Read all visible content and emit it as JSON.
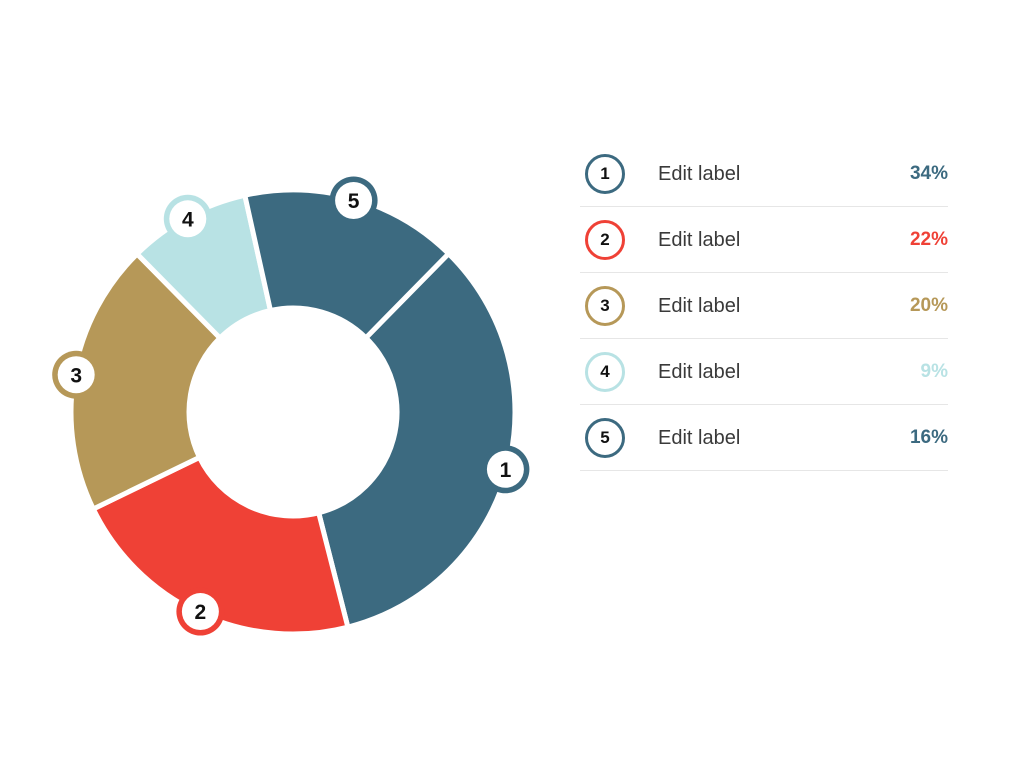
{
  "chart_data": {
    "type": "pie",
    "donut": true,
    "categories": [
      "1",
      "2",
      "3",
      "4",
      "5"
    ],
    "values": [
      34,
      22,
      20,
      9,
      16
    ],
    "value_labels": [
      "34%",
      "22%",
      "20%",
      "9%",
      "16%"
    ],
    "colors": [
      "#3c6a80",
      "#ef4136",
      "#b69858",
      "#b8e2e4",
      "#3c6a80"
    ],
    "title": "",
    "legend": {
      "placement": "right",
      "entries": [
        {
          "badge": "1",
          "label": "Edit label",
          "value": "34%",
          "color": "#3c6a80"
        },
        {
          "badge": "2",
          "label": "Edit label",
          "value": "22%",
          "color": "#ef4136"
        },
        {
          "badge": "3",
          "label": "Edit label",
          "value": "20%",
          "color": "#b69858"
        },
        {
          "badge": "4",
          "label": "Edit label",
          "value": "9%",
          "color": "#b8e2e4"
        },
        {
          "badge": "5",
          "label": "Edit label",
          "value": "16%",
          "color": "#3c6a80"
        }
      ]
    }
  }
}
